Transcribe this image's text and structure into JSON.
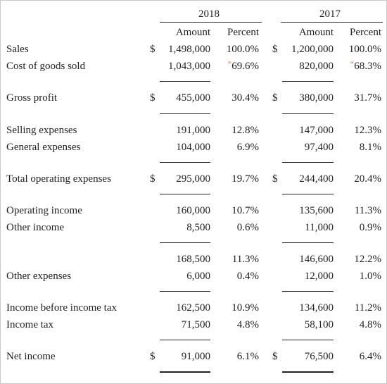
{
  "header": {
    "year_2018": "2018",
    "year_2017": "2017",
    "amount_label": "Amount",
    "percent_label": "Percent"
  },
  "colors": {
    "text": "#222222",
    "asterisk": "#e8925a",
    "border": "#c9c9c9"
  },
  "rows": {
    "sales": {
      "label": "Sales",
      "d18": "$",
      "a18": "1,498,000",
      "p18": "100.0%",
      "d17": "$",
      "a17": "1,200,000",
      "p17": "100.0%"
    },
    "cogs": {
      "label": "Cost of goods sold",
      "a18": "1,043,000",
      "mark18": "*",
      "p18": "69.6%",
      "a17": "820,000",
      "mark17": "*",
      "p17": "68.3%"
    },
    "gross": {
      "label": "Gross profit",
      "d18": "$",
      "a18": "455,000",
      "p18": "30.4%",
      "d17": "$",
      "a17": "380,000",
      "p17": "31.7%"
    },
    "selling": {
      "label": "Selling expenses",
      "a18": "191,000",
      "p18": "12.8%",
      "a17": "147,000",
      "p17": "12.3%"
    },
    "general": {
      "label": "General expenses",
      "a18": "104,000",
      "p18": "6.9%",
      "a17": "97,400",
      "p17": "8.1%"
    },
    "total_op": {
      "label": "Total operating expenses",
      "d18": "$",
      "a18": "295,000",
      "p18": "19.7%",
      "d17": "$",
      "a17": "244,400",
      "p17": "20.4%"
    },
    "op_income": {
      "label": "Operating income",
      "a18": "160,000",
      "p18": "10.7%",
      "a17": "135,600",
      "p17": "11.3%"
    },
    "other_income": {
      "label": "Other income",
      "a18": "8,500",
      "p18": "0.6%",
      "a17": "11,000",
      "p17": "0.9%"
    },
    "subtotal": {
      "a18": "168,500",
      "p18": "11.3%",
      "a17": "146,600",
      "p17": "12.2%"
    },
    "other_exp": {
      "label": "Other expenses",
      "a18": "6,000",
      "p18": "0.4%",
      "a17": "12,000",
      "p17": "1.0%"
    },
    "before_tax": {
      "label": "Income before income tax",
      "a18": "162,500",
      "p18": "10.9%",
      "a17": "134,600",
      "p17": "11.2%"
    },
    "tax": {
      "label": "Income tax",
      "a18": "71,500",
      "p18": "4.8%",
      "a17": "58,100",
      "p17": "4.8%"
    },
    "net": {
      "label": "Net income",
      "d18": "$",
      "a18": "91,000",
      "p18": "6.1%",
      "d17": "$",
      "a17": "76,500",
      "p17": "6.4%"
    }
  }
}
